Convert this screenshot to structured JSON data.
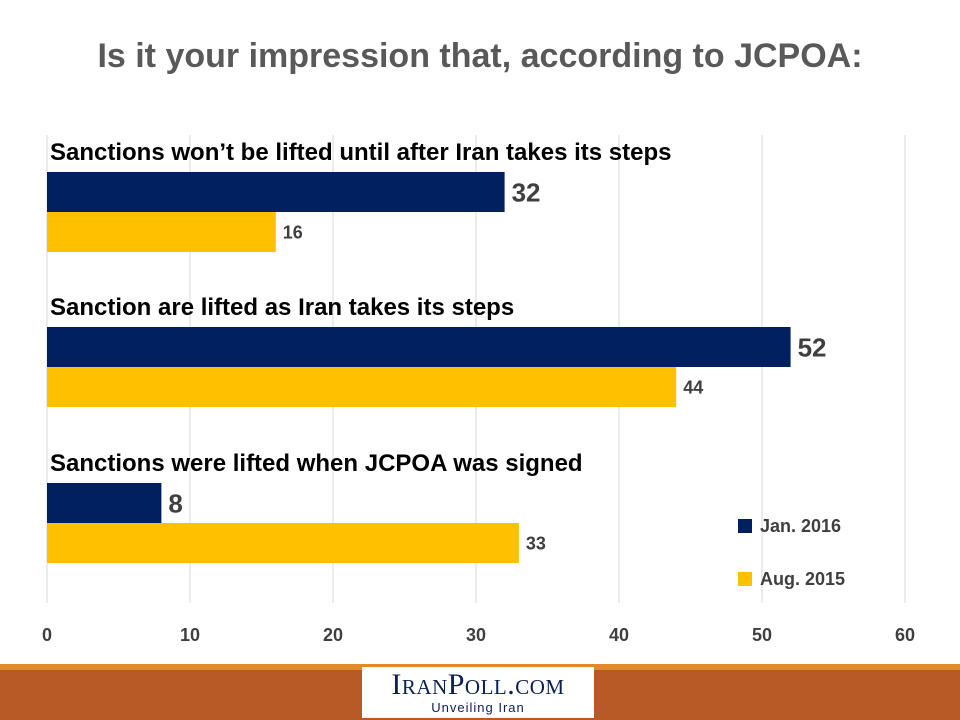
{
  "title": "Is it your impression that, according to JCPOA:",
  "footer": {
    "logo_text": "IranPoll.com",
    "tagline": "Unveiling Iran"
  },
  "chart_data": {
    "type": "bar",
    "orientation": "horizontal",
    "categories": [
      "Sanctions won’t be lifted until after Iran takes its steps",
      "Sanction are lifted as Iran takes its steps",
      "Sanctions were lifted when JCPOA was signed"
    ],
    "series": [
      {
        "name": "Jan. 2016",
        "color": "#002060",
        "values": [
          32,
          52,
          8
        ]
      },
      {
        "name": "Aug. 2015",
        "color": "#ffc000",
        "values": [
          16,
          44,
          33
        ]
      }
    ],
    "xlim": [
      0,
      60
    ],
    "ticks": [
      0,
      10,
      20,
      30,
      40,
      50,
      60
    ],
    "grid": true,
    "legend_position": "bottom-right"
  }
}
